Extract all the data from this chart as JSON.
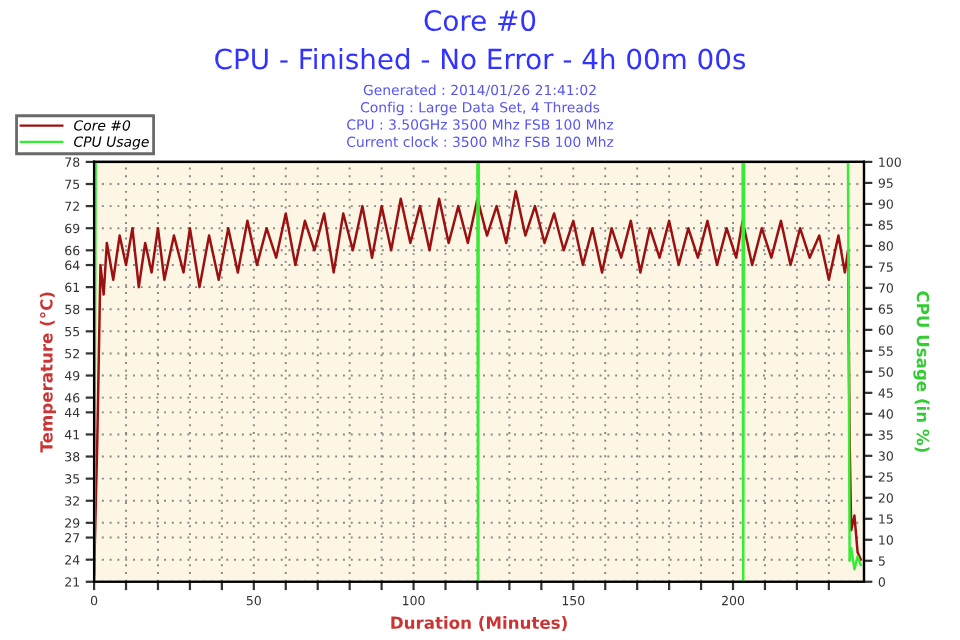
{
  "chart_data": {
    "type": "line",
    "title": "Core #0",
    "subtitle": "CPU - Finished - No Error - 4h 00m 00s",
    "annotations": [
      "Generated : 2014/01/26 21:41:02",
      "Config : Large Data Set, 4 Threads",
      "CPU : 3.50GHz 3500 Mhz FSB 100 Mhz",
      "Current clock : 3500 Mhz FSB 100 Mhz"
    ],
    "xlabel": "Duration (Minutes)",
    "ylabel": "Temperature (°C)",
    "y2label": "CPU Usage (in %)",
    "series": [
      {
        "name": "Core #0",
        "color": "#9b1010",
        "x": [
          0,
          1,
          2,
          3,
          4,
          6,
          8,
          10,
          12,
          14,
          16,
          18,
          20,
          22,
          25,
          28,
          30,
          33,
          36,
          39,
          42,
          45,
          48,
          51,
          54,
          57,
          60,
          63,
          66,
          69,
          72,
          75,
          78,
          81,
          84,
          87,
          90,
          93,
          96,
          99,
          102,
          105,
          108,
          111,
          114,
          117,
          120,
          123,
          126,
          129,
          132,
          135,
          138,
          141,
          144,
          147,
          150,
          153,
          156,
          159,
          162,
          165,
          168,
          171,
          174,
          177,
          180,
          183,
          186,
          189,
          192,
          195,
          198,
          201,
          203,
          206,
          209,
          212,
          215,
          218,
          221,
          224,
          227,
          230,
          233,
          235,
          236,
          236.5,
          237,
          238,
          239,
          240
        ],
        "values": [
          22,
          40,
          64,
          60,
          67,
          62,
          68,
          64,
          69,
          61,
          67,
          63,
          69,
          62,
          68,
          63,
          69,
          61,
          68,
          62,
          69,
          63,
          70,
          64,
          69,
          65,
          71,
          64,
          70,
          66,
          71,
          63,
          71,
          66,
          72,
          65,
          72,
          66,
          73,
          67,
          72,
          66,
          73,
          67,
          72,
          67,
          73,
          68,
          72,
          67,
          74,
          68,
          72,
          67,
          71,
          66,
          70,
          64,
          69,
          63,
          69,
          65,
          70,
          63,
          69,
          65,
          70,
          64,
          69,
          65,
          70,
          64,
          69,
          65,
          70,
          64,
          69,
          65,
          70,
          64,
          69,
          65,
          68,
          62,
          68,
          63,
          66,
          40,
          28,
          30,
          25,
          24
        ]
      },
      {
        "name": "CPU Usage",
        "color": "#33ee33",
        "axis": "y2",
        "x": [
          0,
          0.5,
          120,
          120.2,
          120.4,
          203,
          203.2,
          203.4,
          236,
          236.5,
          237,
          238,
          239,
          240
        ],
        "values": [
          0,
          100,
          100,
          0,
          100,
          100,
          0,
          100,
          100,
          5,
          8,
          3,
          6,
          4
        ]
      }
    ],
    "xlim": [
      0,
      241
    ],
    "xticks": [
      0,
      {
        "value": 10,
        "label": null
      },
      {
        "value": 20,
        "label": null
      },
      {
        "value": 30,
        "label": null
      },
      {
        "value": 40,
        "label": null
      },
      50,
      {
        "value": 60,
        "label": null
      },
      {
        "value": 70,
        "label": null
      },
      {
        "value": 80,
        "label": null
      },
      {
        "value": 90,
        "label": null
      },
      100,
      {
        "value": 110,
        "label": null
      },
      {
        "value": 120,
        "label": null
      },
      {
        "value": 130,
        "label": null
      },
      {
        "value": 140,
        "label": null
      },
      150,
      {
        "value": 160,
        "label": null
      },
      {
        "value": 170,
        "label": null
      },
      {
        "value": 180,
        "label": null
      },
      {
        "value": 190,
        "label": null
      },
      200,
      {
        "value": 210,
        "label": null
      },
      {
        "value": 220,
        "label": null
      },
      {
        "value": 230,
        "label": null
      }
    ],
    "ylim": [
      21,
      78
    ],
    "yticks": [
      21,
      24,
      27,
      29,
      32,
      35,
      38,
      41,
      44,
      46,
      49,
      52,
      55,
      58,
      61,
      64,
      66,
      69,
      72,
      75,
      78
    ],
    "y2lim": [
      0,
      100
    ],
    "y2ticks": [
      0,
      5,
      10,
      15,
      20,
      25,
      30,
      35,
      40,
      45,
      50,
      55,
      60,
      65,
      70,
      75,
      80,
      85,
      90,
      95,
      100
    ],
    "grid": true,
    "legend": "top left",
    "marker": "none",
    "line_style": "solid"
  }
}
